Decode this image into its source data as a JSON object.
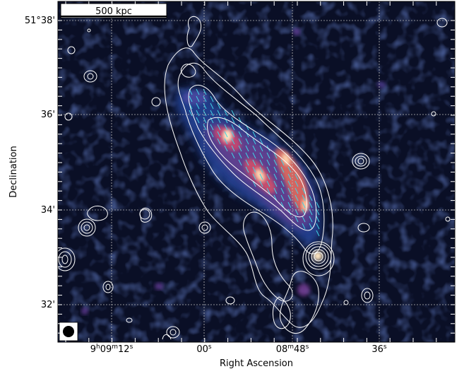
{
  "figure": {
    "xlabel": "Right Ascension",
    "ylabel": "Declination",
    "x_ticks": [
      {
        "h": "9",
        "m": "09",
        "s": "12"
      },
      {
        "h": "",
        "m": "",
        "s": "00"
      },
      {
        "h": "",
        "m": "08",
        "s": "48"
      },
      {
        "h": "",
        "m": "",
        "s": "36"
      }
    ],
    "y_ticks": [
      "51°38'",
      "36'",
      "34'",
      "32'"
    ],
    "scale_bar_label": "500 kpc",
    "beam": "filled-circle-beam",
    "colors": {
      "background": "#0a0f26",
      "emission_low": "#1f3a8a",
      "emission_mid": "#c0436e",
      "emission_high": "#ffe6c2",
      "contour": "#ffffff",
      "vectors": "#3fd4e6",
      "grid": "#b8b8b8"
    },
    "grid": true,
    "colormap": "cubehelix-like"
  }
}
